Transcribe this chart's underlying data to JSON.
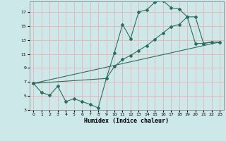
{
  "xlabel": "Humidex (Indice chaleur)",
  "bg_color": "#cce8e8",
  "grid_color": "#e8b8b8",
  "line_color": "#2a7060",
  "xlim": [
    -0.5,
    23.5
  ],
  "ylim": [
    3,
    18.5
  ],
  "xticks": [
    0,
    1,
    2,
    3,
    4,
    5,
    6,
    7,
    8,
    9,
    10,
    11,
    12,
    13,
    14,
    15,
    16,
    17,
    18,
    19,
    20,
    21,
    22,
    23
  ],
  "yticks": [
    3,
    5,
    7,
    9,
    11,
    13,
    15,
    17
  ],
  "line1_x": [
    0,
    1,
    2,
    3,
    4,
    5,
    6,
    7,
    8,
    9,
    10,
    11,
    12,
    13,
    14,
    15,
    16,
    17,
    18,
    19,
    20,
    21,
    22,
    23
  ],
  "line1_y": [
    6.8,
    5.5,
    5.1,
    6.4,
    4.2,
    4.6,
    4.2,
    3.8,
    3.3,
    7.5,
    11.2,
    15.2,
    13.2,
    17.0,
    17.3,
    18.4,
    18.6,
    17.6,
    17.4,
    16.3,
    12.5,
    12.5,
    12.7,
    12.7
  ],
  "line2_x": [
    0,
    9,
    10,
    11,
    12,
    13,
    14,
    15,
    16,
    17,
    18,
    19,
    20,
    21,
    22,
    23
  ],
  "line2_y": [
    6.8,
    7.5,
    9.2,
    10.2,
    10.8,
    11.5,
    12.2,
    13.1,
    14.0,
    14.9,
    15.2,
    16.3,
    16.3,
    12.5,
    12.7,
    12.7
  ],
  "line3_x": [
    0,
    23
  ],
  "line3_y": [
    6.8,
    12.7
  ]
}
